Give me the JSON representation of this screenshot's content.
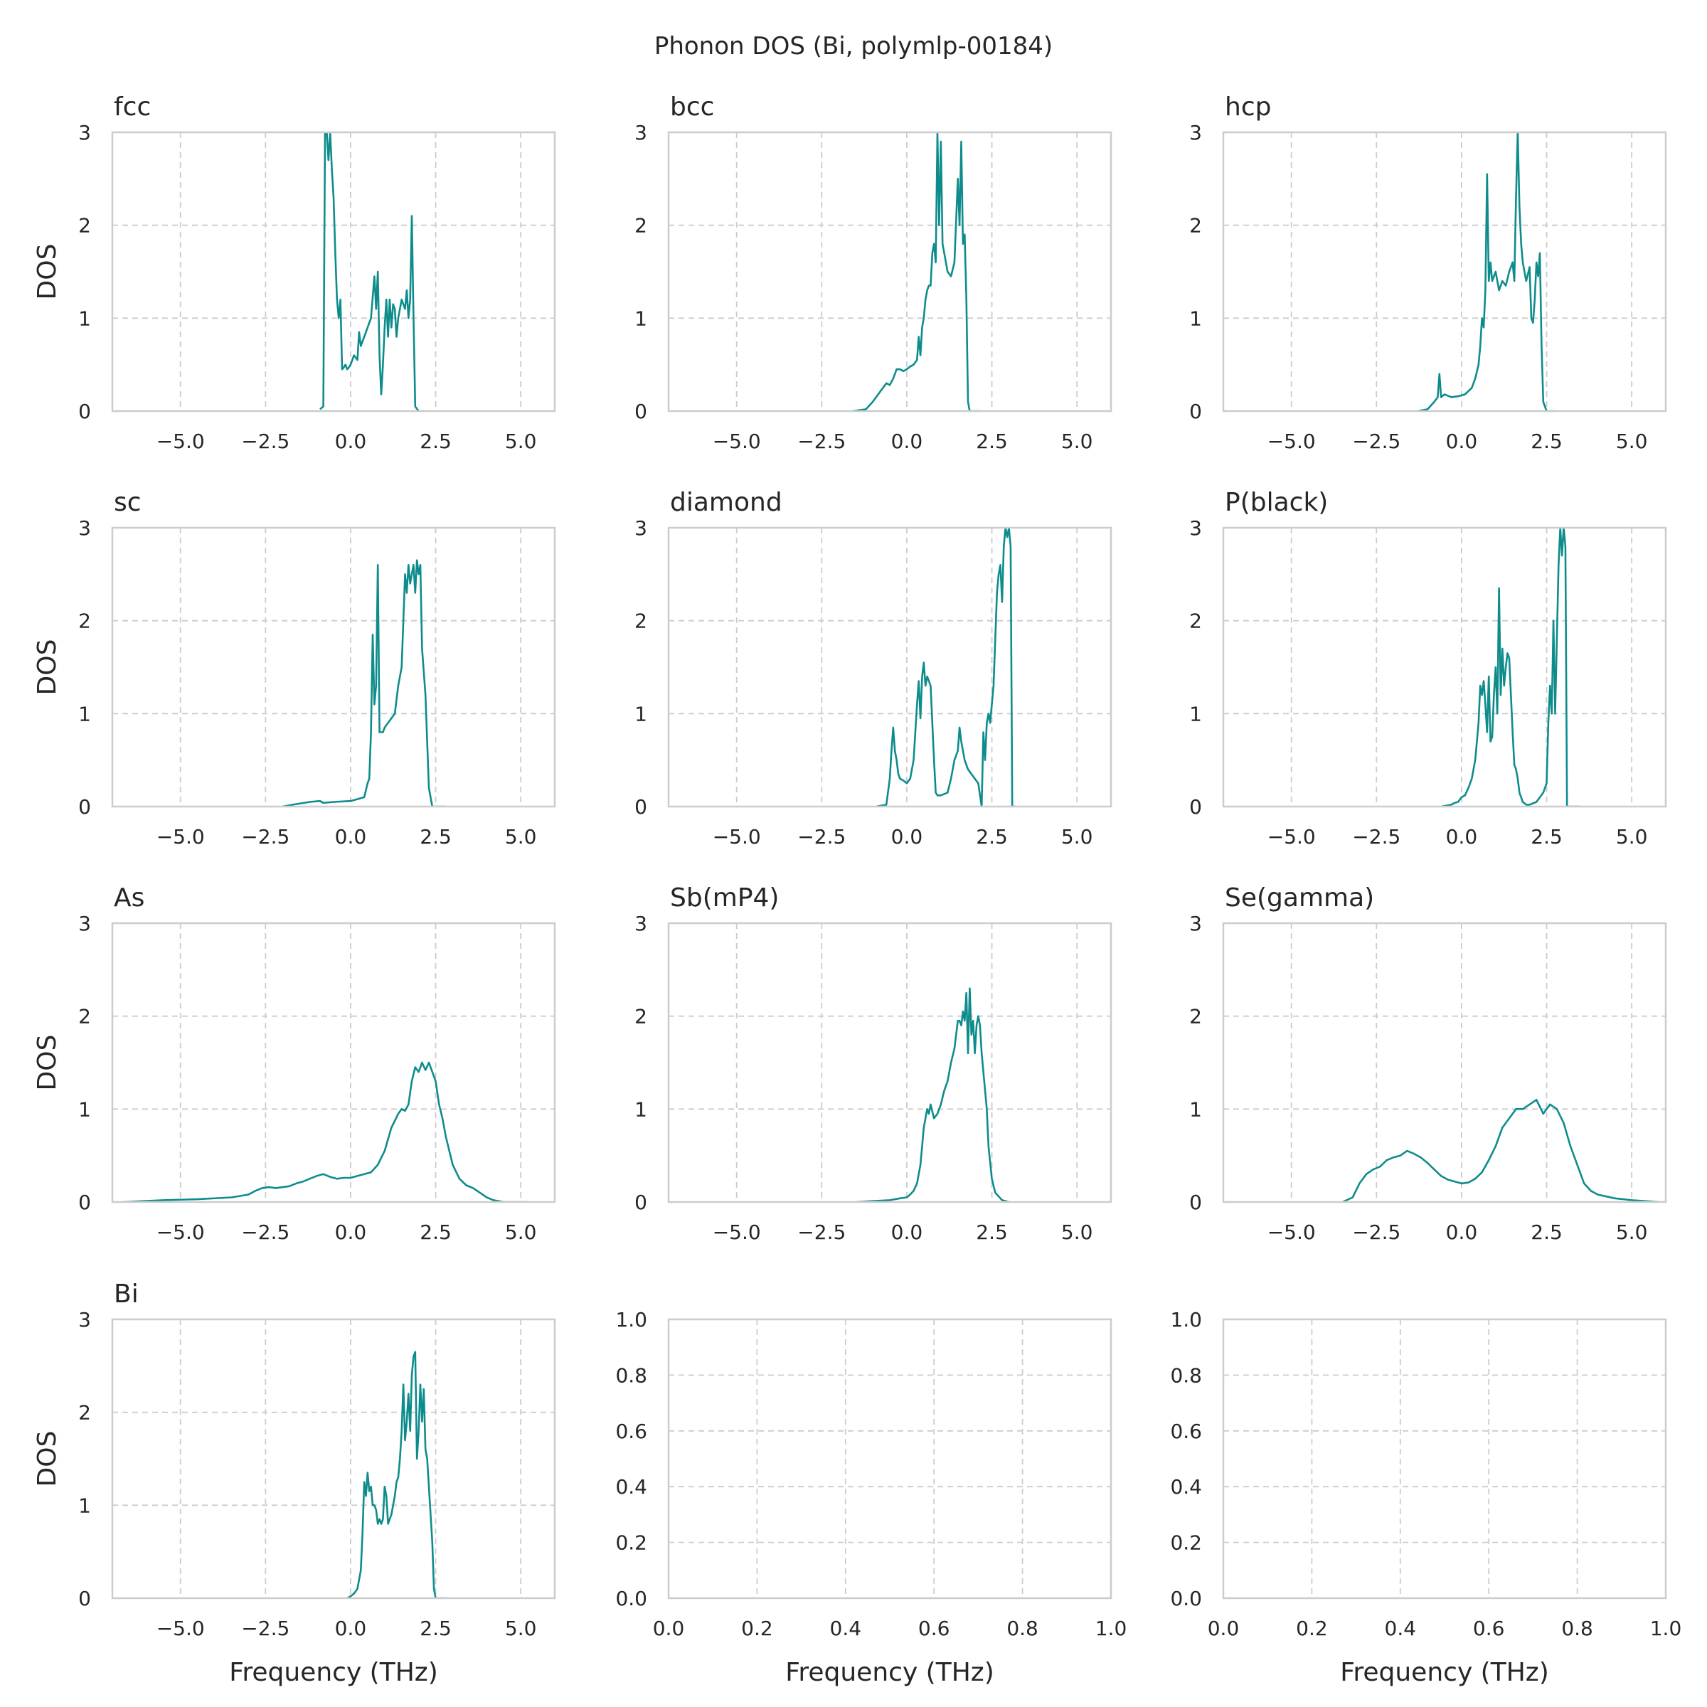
{
  "figure": {
    "title": "Phonon DOS (Bi, polymlp-00184)",
    "line_color": "#0e8c8c",
    "grid": true,
    "xlabel": "Frequency (THz)",
    "ylabel": "DOS"
  },
  "chart_data": [
    {
      "type": "line",
      "title": "fcc",
      "xlim": [
        -7,
        6
      ],
      "ylim": [
        0,
        3
      ],
      "xticks": [
        "−5.0",
        "−2.5",
        "0.0",
        "2.5",
        "5.0"
      ],
      "yticks": [
        "0",
        "1",
        "2",
        "3"
      ],
      "xlabel": "",
      "ylabel": "DOS",
      "x": [
        -0.9,
        -0.8,
        -0.75,
        -0.7,
        -0.65,
        -0.6,
        -0.55,
        -0.5,
        -0.45,
        -0.4,
        -0.35,
        -0.3,
        -0.25,
        -0.2,
        -0.15,
        -0.1,
        -0.05,
        0.0,
        0.1,
        0.2,
        0.25,
        0.3,
        0.35,
        0.4,
        0.45,
        0.5,
        0.6,
        0.7,
        0.75,
        0.8,
        0.85,
        0.9,
        0.95,
        1.0,
        1.05,
        1.1,
        1.15,
        1.2,
        1.25,
        1.3,
        1.35,
        1.4,
        1.5,
        1.6,
        1.65,
        1.7,
        1.75,
        1.8,
        1.85,
        1.9,
        2.0,
        2.2
      ],
      "y": [
        0.02,
        0.05,
        3.0,
        3.0,
        2.7,
        3.0,
        2.6,
        2.3,
        1.7,
        1.2,
        1.0,
        1.2,
        0.45,
        0.47,
        0.5,
        0.45,
        0.47,
        0.5,
        0.6,
        0.55,
        0.85,
        0.7,
        0.75,
        0.8,
        0.85,
        0.9,
        1.0,
        1.45,
        1.1,
        1.5,
        0.6,
        0.18,
        0.5,
        0.9,
        1.2,
        0.8,
        1.2,
        0.9,
        1.15,
        1.1,
        0.8,
        1.0,
        1.2,
        1.1,
        1.3,
        1.0,
        1.2,
        2.1,
        1.0,
        0.05,
        0.0,
        0.0
      ]
    },
    {
      "type": "line",
      "title": "bcc",
      "xlim": [
        -7,
        6
      ],
      "ylim": [
        0,
        3
      ],
      "xticks": [
        "−5.0",
        "−2.5",
        "0.0",
        "2.5",
        "5.0"
      ],
      "yticks": [
        "0",
        "1",
        "2",
        "3"
      ],
      "xlabel": "",
      "ylabel": "",
      "x": [
        -1.6,
        -1.2,
        -1.0,
        -0.8,
        -0.6,
        -0.5,
        -0.4,
        -0.3,
        -0.2,
        -0.1,
        0.0,
        0.1,
        0.2,
        0.3,
        0.35,
        0.4,
        0.45,
        0.5,
        0.55,
        0.6,
        0.65,
        0.7,
        0.75,
        0.8,
        0.85,
        0.9,
        0.95,
        1.0,
        1.05,
        1.1,
        1.15,
        1.2,
        1.3,
        1.4,
        1.5,
        1.55,
        1.6,
        1.65,
        1.7,
        1.75,
        1.8,
        1.85,
        1.9,
        2.0,
        2.2
      ],
      "y": [
        0.0,
        0.02,
        0.1,
        0.2,
        0.3,
        0.28,
        0.35,
        0.45,
        0.45,
        0.43,
        0.45,
        0.48,
        0.5,
        0.55,
        0.8,
        0.6,
        0.9,
        1.0,
        1.2,
        1.3,
        1.35,
        1.35,
        1.7,
        1.8,
        1.6,
        3.0,
        2.0,
        2.9,
        1.8,
        1.7,
        1.6,
        1.5,
        1.45,
        1.6,
        2.5,
        2.0,
        2.9,
        1.8,
        1.9,
        1.2,
        0.1,
        0.0,
        0.0,
        0.0,
        0.0
      ]
    },
    {
      "type": "line",
      "title": "hcp",
      "xlim": [
        -7,
        6
      ],
      "ylim": [
        0,
        3
      ],
      "xticks": [
        "−5.0",
        "−2.5",
        "0.0",
        "2.5",
        "5.0"
      ],
      "yticks": [
        "0",
        "1",
        "2",
        "3"
      ],
      "xlabel": "",
      "ylabel": "",
      "x": [
        -1.3,
        -1.0,
        -0.8,
        -0.7,
        -0.65,
        -0.6,
        -0.5,
        -0.3,
        -0.1,
        0.1,
        0.3,
        0.4,
        0.5,
        0.55,
        0.6,
        0.65,
        0.7,
        0.75,
        0.8,
        0.85,
        0.9,
        1.0,
        1.1,
        1.2,
        1.3,
        1.4,
        1.5,
        1.55,
        1.6,
        1.65,
        1.7,
        1.75,
        1.8,
        1.85,
        1.9,
        2.0,
        2.05,
        2.1,
        2.15,
        2.2,
        2.25,
        2.3,
        2.35,
        2.4,
        2.5,
        2.8
      ],
      "y": [
        0.0,
        0.02,
        0.1,
        0.15,
        0.4,
        0.15,
        0.18,
        0.15,
        0.16,
        0.18,
        0.25,
        0.35,
        0.5,
        0.7,
        1.0,
        0.9,
        1.3,
        2.55,
        1.4,
        1.6,
        1.4,
        1.5,
        1.3,
        1.4,
        1.35,
        1.5,
        1.6,
        1.4,
        2.3,
        3.0,
        2.2,
        1.8,
        1.6,
        1.5,
        1.4,
        1.55,
        1.0,
        0.95,
        1.2,
        1.6,
        1.45,
        1.7,
        0.7,
        0.1,
        0.0,
        0.0
      ]
    },
    {
      "type": "line",
      "title": "sc",
      "xlim": [
        -7,
        6
      ],
      "ylim": [
        0,
        3
      ],
      "xticks": [
        "−5.0",
        "−2.5",
        "0.0",
        "2.5",
        "5.0"
      ],
      "yticks": [
        "0",
        "1",
        "2",
        "3"
      ],
      "xlabel": "",
      "ylabel": "DOS",
      "x": [
        -2.0,
        -1.7,
        -1.2,
        -0.9,
        -0.8,
        -0.5,
        0.0,
        0.4,
        0.5,
        0.55,
        0.6,
        0.65,
        0.7,
        0.75,
        0.8,
        0.85,
        0.9,
        0.95,
        1.0,
        1.2,
        1.3,
        1.4,
        1.5,
        1.55,
        1.6,
        1.65,
        1.7,
        1.75,
        1.8,
        1.85,
        1.9,
        1.95,
        2.0,
        2.05,
        2.1,
        2.2,
        2.3,
        2.4,
        2.5,
        2.8
      ],
      "y": [
        0.0,
        0.02,
        0.05,
        0.06,
        0.04,
        0.05,
        0.06,
        0.1,
        0.25,
        0.3,
        0.8,
        1.85,
        1.1,
        1.3,
        2.6,
        0.8,
        0.8,
        0.8,
        0.85,
        0.95,
        1.0,
        1.3,
        1.5,
        2.0,
        2.5,
        2.3,
        2.6,
        2.4,
        2.5,
        2.6,
        2.3,
        2.65,
        2.5,
        2.6,
        1.7,
        1.2,
        0.2,
        0.0,
        0.0,
        0.0
      ]
    },
    {
      "type": "line",
      "title": "diamond",
      "xlim": [
        -7,
        6
      ],
      "ylim": [
        0,
        3
      ],
      "xticks": [
        "−5.0",
        "−2.5",
        "0.0",
        "2.5",
        "5.0"
      ],
      "yticks": [
        "0",
        "1",
        "2",
        "3"
      ],
      "xlabel": "",
      "ylabel": "",
      "x": [
        -0.9,
        -0.6,
        -0.5,
        -0.45,
        -0.4,
        -0.35,
        -0.3,
        -0.25,
        -0.2,
        -0.1,
        0.0,
        0.1,
        0.2,
        0.25,
        0.3,
        0.35,
        0.4,
        0.45,
        0.5,
        0.55,
        0.6,
        0.65,
        0.7,
        0.75,
        0.8,
        0.85,
        0.9,
        1.0,
        1.2,
        1.3,
        1.4,
        1.5,
        1.55,
        1.6,
        1.65,
        1.7,
        1.8,
        1.9,
        2.0,
        2.1,
        2.2,
        2.25,
        2.3,
        2.35,
        2.4,
        2.45,
        2.5,
        2.55,
        2.6,
        2.65,
        2.7,
        2.75,
        2.8,
        2.85,
        2.9,
        2.95,
        3.0,
        3.05,
        3.1,
        3.2
      ],
      "y": [
        0.0,
        0.02,
        0.3,
        0.6,
        0.85,
        0.6,
        0.5,
        0.35,
        0.3,
        0.28,
        0.25,
        0.3,
        0.5,
        0.8,
        1.1,
        1.35,
        0.95,
        1.4,
        1.55,
        1.3,
        1.4,
        1.35,
        1.3,
        0.9,
        0.5,
        0.15,
        0.12,
        0.12,
        0.15,
        0.3,
        0.5,
        0.6,
        0.85,
        0.7,
        0.6,
        0.5,
        0.4,
        0.35,
        0.3,
        0.25,
        0.0,
        0.8,
        0.5,
        0.9,
        1.0,
        0.9,
        1.1,
        1.3,
        1.8,
        2.3,
        2.5,
        2.6,
        2.2,
        2.8,
        3.0,
        2.9,
        3.0,
        2.8,
        0.0,
        0.0
      ]
    },
    {
      "type": "line",
      "title": "P(black)",
      "xlim": [
        -7,
        6
      ],
      "ylim": [
        0,
        3
      ],
      "xticks": [
        "−5.0",
        "−2.5",
        "0.0",
        "2.5",
        "5.0"
      ],
      "yticks": [
        "0",
        "1",
        "2",
        "3"
      ],
      "xlabel": "",
      "ylabel": "",
      "x": [
        -0.6,
        -0.3,
        -0.2,
        -0.1,
        0.0,
        0.1,
        0.2,
        0.3,
        0.4,
        0.45,
        0.5,
        0.55,
        0.6,
        0.65,
        0.7,
        0.75,
        0.8,
        0.85,
        0.9,
        0.95,
        1.0,
        1.05,
        1.1,
        1.15,
        1.2,
        1.25,
        1.3,
        1.35,
        1.4,
        1.45,
        1.5,
        1.55,
        1.6,
        1.65,
        1.7,
        1.8,
        1.9,
        2.0,
        2.2,
        2.4,
        2.5,
        2.55,
        2.6,
        2.65,
        2.7,
        2.75,
        2.8,
        2.85,
        2.9,
        2.95,
        3.0,
        3.05,
        3.1,
        3.2,
        3.3,
        3.5
      ],
      "y": [
        0.0,
        0.02,
        0.04,
        0.05,
        0.1,
        0.12,
        0.2,
        0.3,
        0.5,
        0.7,
        0.9,
        1.3,
        1.2,
        1.35,
        1.1,
        0.8,
        1.4,
        0.7,
        0.75,
        1.2,
        1.5,
        1.0,
        2.35,
        1.2,
        1.7,
        1.3,
        1.5,
        1.65,
        1.6,
        1.2,
        0.8,
        0.45,
        0.4,
        0.3,
        0.15,
        0.05,
        0.02,
        0.02,
        0.05,
        0.15,
        0.25,
        0.9,
        1.3,
        1.0,
        2.0,
        1.0,
        1.8,
        2.6,
        3.0,
        2.7,
        3.0,
        2.8,
        0.0,
        0.0,
        0.0,
        0.0
      ]
    },
    {
      "type": "line",
      "title": "As",
      "xlim": [
        -7,
        6
      ],
      "ylim": [
        0,
        3
      ],
      "xticks": [
        "−5.0",
        "−2.5",
        "0.0",
        "2.5",
        "5.0"
      ],
      "yticks": [
        "0",
        "1",
        "2",
        "3"
      ],
      "xlabel": "",
      "ylabel": "DOS",
      "x": [
        -6.7,
        -5.5,
        -4.5,
        -3.5,
        -3.0,
        -2.8,
        -2.6,
        -2.4,
        -2.2,
        -2.0,
        -1.8,
        -1.6,
        -1.4,
        -1.2,
        -1.0,
        -0.8,
        -0.6,
        -0.4,
        -0.2,
        0.0,
        0.2,
        0.4,
        0.6,
        0.8,
        1.0,
        1.2,
        1.4,
        1.5,
        1.6,
        1.7,
        1.8,
        1.9,
        2.0,
        2.1,
        2.2,
        2.3,
        2.4,
        2.5,
        2.6,
        2.7,
        2.8,
        2.9,
        3.0,
        3.2,
        3.4,
        3.6,
        3.8,
        4.0,
        4.2,
        4.5,
        5.2
      ],
      "y": [
        0.0,
        0.02,
        0.03,
        0.05,
        0.08,
        0.12,
        0.15,
        0.16,
        0.15,
        0.16,
        0.17,
        0.2,
        0.22,
        0.25,
        0.28,
        0.3,
        0.27,
        0.25,
        0.26,
        0.26,
        0.28,
        0.3,
        0.32,
        0.4,
        0.55,
        0.8,
        0.95,
        1.0,
        0.98,
        1.05,
        1.3,
        1.45,
        1.4,
        1.5,
        1.42,
        1.5,
        1.4,
        1.3,
        1.05,
        0.9,
        0.7,
        0.55,
        0.4,
        0.25,
        0.18,
        0.15,
        0.1,
        0.05,
        0.02,
        0.0,
        0.0
      ]
    },
    {
      "type": "line",
      "title": "Sb(mP4)",
      "xlim": [
        -7,
        6
      ],
      "ylim": [
        0,
        3
      ],
      "xticks": [
        "−5.0",
        "−2.5",
        "0.0",
        "2.5",
        "5.0"
      ],
      "yticks": [
        "0",
        "1",
        "2",
        "3"
      ],
      "xlabel": "",
      "ylabel": "",
      "x": [
        -1.5,
        -1.0,
        -0.5,
        -0.2,
        0.0,
        0.1,
        0.2,
        0.3,
        0.4,
        0.45,
        0.5,
        0.55,
        0.6,
        0.65,
        0.7,
        0.8,
        0.9,
        1.0,
        1.1,
        1.2,
        1.3,
        1.4,
        1.5,
        1.55,
        1.6,
        1.65,
        1.7,
        1.75,
        1.8,
        1.85,
        1.9,
        1.95,
        2.0,
        2.05,
        2.1,
        2.15,
        2.2,
        2.25,
        2.3,
        2.35,
        2.4,
        2.5,
        2.6,
        2.8,
        3.0
      ],
      "y": [
        0.0,
        0.01,
        0.02,
        0.04,
        0.05,
        0.08,
        0.12,
        0.2,
        0.4,
        0.6,
        0.8,
        0.9,
        1.0,
        0.95,
        1.05,
        0.9,
        0.95,
        1.05,
        1.2,
        1.3,
        1.5,
        1.65,
        1.95,
        1.95,
        1.9,
        2.05,
        1.95,
        2.25,
        1.6,
        2.3,
        1.8,
        1.95,
        1.6,
        1.9,
        2.0,
        1.9,
        1.6,
        1.4,
        1.2,
        1.0,
        0.6,
        0.25,
        0.1,
        0.02,
        0.0
      ]
    },
    {
      "type": "line",
      "title": "Se(gamma)",
      "xlim": [
        -7,
        6
      ],
      "ylim": [
        0,
        3
      ],
      "xticks": [
        "−5.0",
        "−2.5",
        "0.0",
        "2.5",
        "5.0"
      ],
      "yticks": [
        "0",
        "1",
        "2",
        "3"
      ],
      "xlabel": "",
      "ylabel": "",
      "x": [
        -3.5,
        -3.2,
        -3.0,
        -2.8,
        -2.6,
        -2.4,
        -2.2,
        -2.0,
        -1.8,
        -1.6,
        -1.4,
        -1.2,
        -1.0,
        -0.8,
        -0.6,
        -0.4,
        -0.2,
        0.0,
        0.2,
        0.4,
        0.6,
        0.8,
        1.0,
        1.2,
        1.4,
        1.6,
        1.8,
        2.0,
        2.2,
        2.4,
        2.6,
        2.8,
        3.0,
        3.2,
        3.4,
        3.6,
        3.8,
        4.0,
        4.5,
        5.0,
        5.8
      ],
      "y": [
        0.0,
        0.05,
        0.2,
        0.3,
        0.35,
        0.38,
        0.45,
        0.48,
        0.5,
        0.55,
        0.52,
        0.48,
        0.42,
        0.35,
        0.28,
        0.24,
        0.22,
        0.2,
        0.21,
        0.25,
        0.32,
        0.45,
        0.6,
        0.8,
        0.9,
        1.0,
        1.0,
        1.05,
        1.1,
        0.95,
        1.05,
        1.0,
        0.85,
        0.6,
        0.4,
        0.2,
        0.12,
        0.08,
        0.04,
        0.02,
        0.0
      ]
    },
    {
      "type": "line",
      "title": "Bi",
      "xlim": [
        -7,
        6
      ],
      "ylim": [
        0,
        3
      ],
      "xticks": [
        "−5.0",
        "−2.5",
        "0.0",
        "2.5",
        "5.0"
      ],
      "yticks": [
        "0",
        "1",
        "2",
        "3"
      ],
      "xlabel": "Frequency (THz)",
      "ylabel": "DOS",
      "x": [
        -0.1,
        0.0,
        0.1,
        0.2,
        0.3,
        0.35,
        0.4,
        0.45,
        0.5,
        0.55,
        0.6,
        0.65,
        0.7,
        0.75,
        0.8,
        0.85,
        0.9,
        0.95,
        1.0,
        1.05,
        1.1,
        1.15,
        1.2,
        1.25,
        1.3,
        1.35,
        1.4,
        1.45,
        1.5,
        1.55,
        1.6,
        1.65,
        1.7,
        1.75,
        1.8,
        1.85,
        1.9,
        1.95,
        2.0,
        2.05,
        2.1,
        2.15,
        2.2,
        2.25,
        2.3,
        2.35,
        2.4,
        2.45,
        2.5,
        2.6,
        2.8
      ],
      "y": [
        0.0,
        0.02,
        0.05,
        0.1,
        0.3,
        0.7,
        1.25,
        1.1,
        1.35,
        1.15,
        1.2,
        1.0,
        1.0,
        0.95,
        0.8,
        0.85,
        0.8,
        0.85,
        1.2,
        1.1,
        0.8,
        0.85,
        0.9,
        1.0,
        1.1,
        1.25,
        1.3,
        1.5,
        1.8,
        2.3,
        1.7,
        1.9,
        2.2,
        1.8,
        2.4,
        2.6,
        2.65,
        1.5,
        1.8,
        2.3,
        1.9,
        2.25,
        1.6,
        1.5,
        1.2,
        0.9,
        0.6,
        0.1,
        0.0,
        0.0,
        0.0
      ]
    },
    {
      "type": "line",
      "title": "",
      "xlim": [
        0,
        1
      ],
      "ylim": [
        0,
        1
      ],
      "xticks": [
        "0.0",
        "0.2",
        "0.4",
        "0.6",
        "0.8",
        "1.0"
      ],
      "yticks": [
        "0.0",
        "0.2",
        "0.4",
        "0.6",
        "0.8",
        "1.0"
      ],
      "xlabel": "Frequency (THz)",
      "ylabel": "",
      "x": [],
      "y": []
    },
    {
      "type": "line",
      "title": "",
      "xlim": [
        0,
        1
      ],
      "ylim": [
        0,
        1
      ],
      "xticks": [
        "0.0",
        "0.2",
        "0.4",
        "0.6",
        "0.8",
        "1.0"
      ],
      "yticks": [
        "0.0",
        "0.2",
        "0.4",
        "0.6",
        "0.8",
        "1.0"
      ],
      "xlabel": "Frequency (THz)",
      "ylabel": "",
      "x": [],
      "y": []
    }
  ]
}
